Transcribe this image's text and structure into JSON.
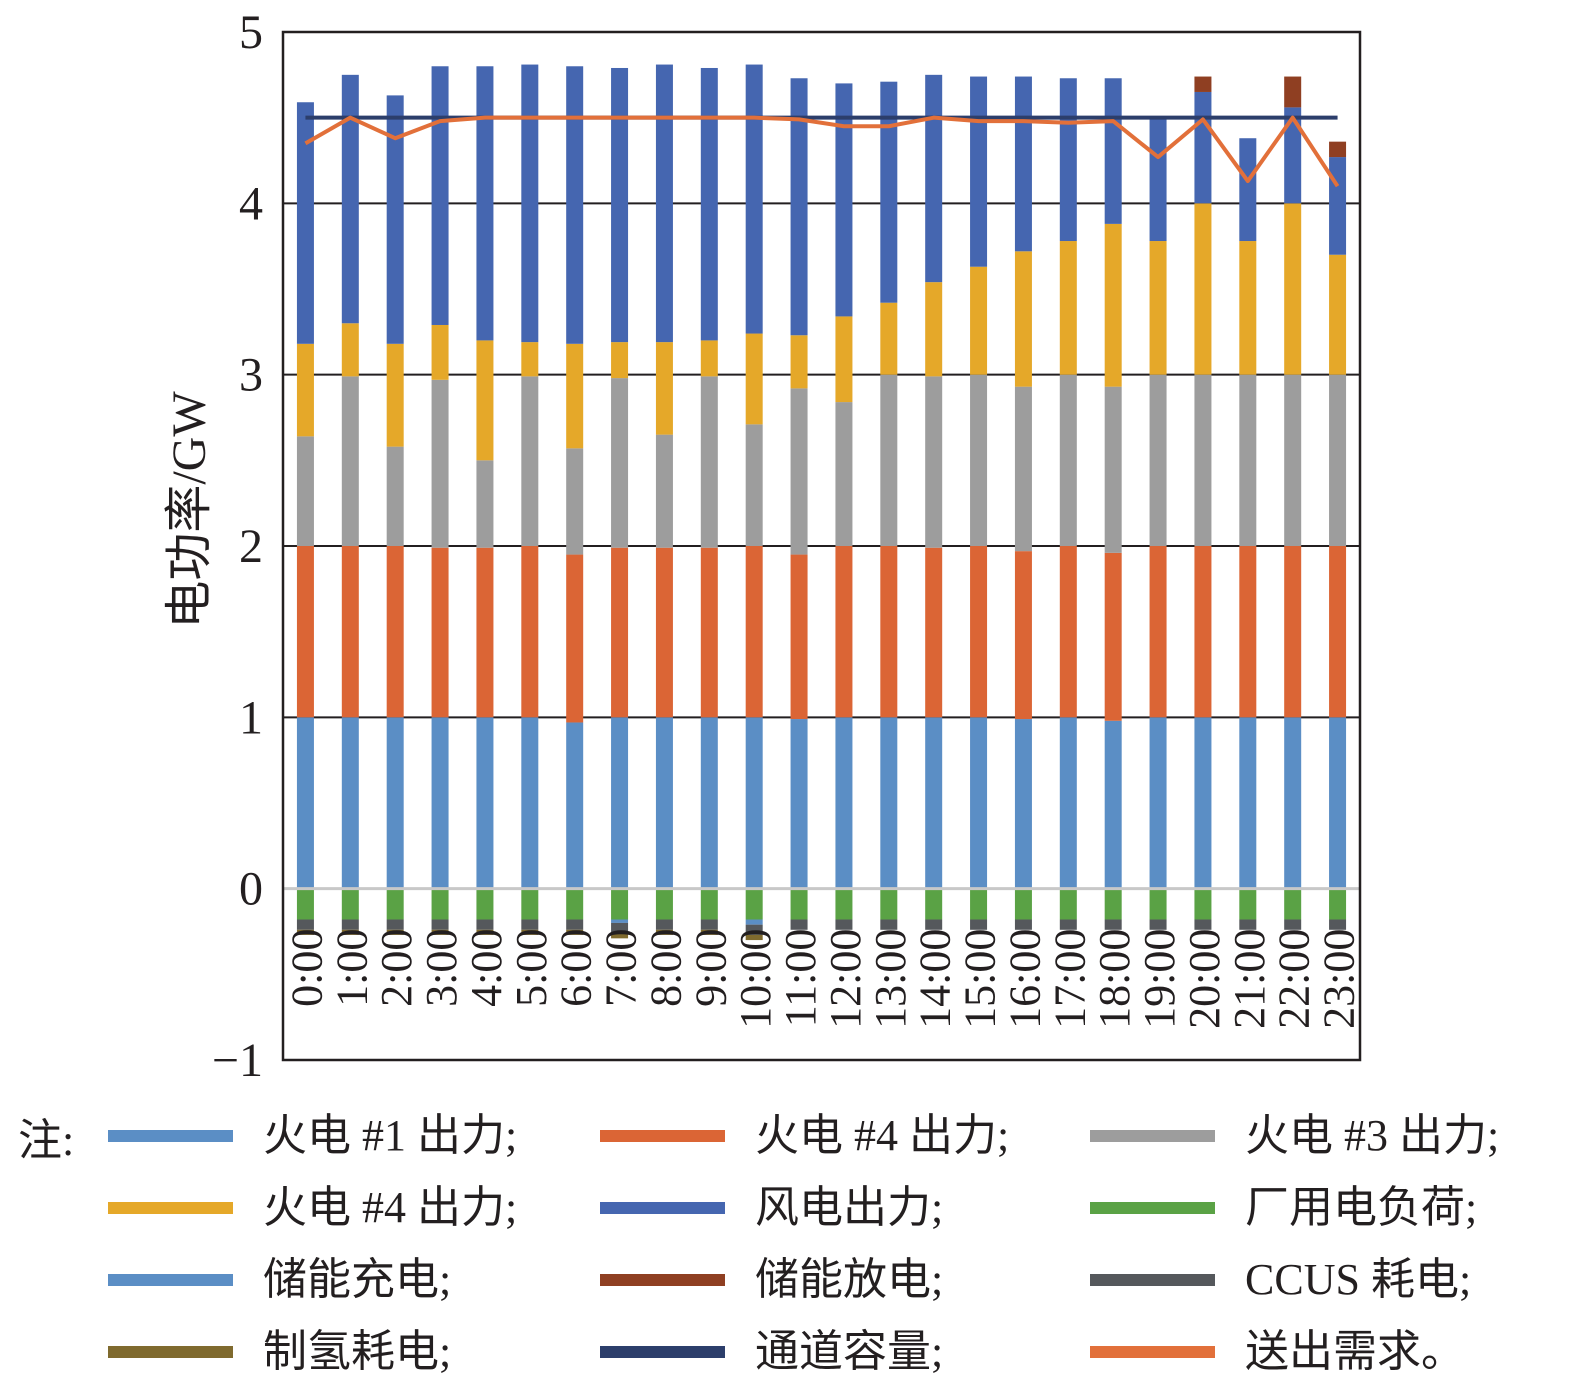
{
  "chart_data": {
    "type": "bar",
    "stacked": true,
    "ylabel": "电功率/GW",
    "ylim": [
      -1,
      5
    ],
    "yticks": [
      -1,
      0,
      1,
      2,
      3,
      4,
      5
    ],
    "ytick_labels": [
      "−1",
      "0",
      "1",
      "2",
      "3",
      "4",
      "5"
    ],
    "grid": "horizontal",
    "legend_position": "bottom",
    "categories": [
      "0:00",
      "1:00",
      "2:00",
      "3:00",
      "4:00",
      "5:00",
      "6:00",
      "7:00",
      "8:00",
      "9:00",
      "10:00",
      "11:00",
      "12:00",
      "13:00",
      "14:00",
      "15:00",
      "16:00",
      "17:00",
      "18:00",
      "19:00",
      "20:00",
      "21:00",
      "22:00",
      "23:00"
    ],
    "series": [
      {
        "name": "火电 #1 出力",
        "kind": "bar",
        "color": "#5b8ec5",
        "values": [
          1,
          1,
          1,
          1,
          1,
          1,
          0.97,
          1,
          1,
          1,
          1,
          0.99,
          1,
          1,
          1,
          1,
          0.99,
          1,
          0.98,
          1,
          1,
          1,
          1,
          1
        ]
      },
      {
        "name": "火电 #4 出力",
        "kind": "bar",
        "color": "#db6535",
        "values": [
          1,
          1,
          1,
          0.99,
          0.99,
          1,
          0.98,
          0.99,
          0.99,
          0.99,
          1,
          0.96,
          1,
          1,
          0.99,
          1,
          0.98,
          1,
          0.98,
          1,
          1,
          1,
          1,
          1
        ]
      },
      {
        "name": "火电 #3 出力",
        "kind": "bar",
        "color": "#9d9d9d",
        "values": [
          0.64,
          0.99,
          0.58,
          0.98,
          0.51,
          0.99,
          0.62,
          0.99,
          0.66,
          1,
          0.71,
          0.97,
          0.84,
          1,
          1,
          1,
          0.96,
          1,
          0.97,
          1,
          1,
          1,
          1,
          1
        ]
      },
      {
        "name": "火电 #4 出力",
        "kind": "bar",
        "color": "#e5a829",
        "values": [
          0.54,
          0.31,
          0.6,
          0.32,
          0.7,
          0.2,
          0.61,
          0.21,
          0.54,
          0.21,
          0.53,
          0.31,
          0.5,
          0.42,
          0.55,
          0.63,
          0.79,
          0.78,
          0.95,
          0.78,
          1,
          0.78,
          1,
          0.7
        ]
      },
      {
        "name": "风电出力",
        "kind": "bar",
        "color": "#4566b0",
        "values": [
          1.41,
          1.45,
          1.45,
          1.51,
          1.6,
          1.62,
          1.62,
          1.6,
          1.62,
          1.59,
          1.57,
          1.5,
          1.36,
          1.29,
          1.21,
          1.11,
          1.02,
          0.95,
          0.85,
          0.72,
          0.65,
          0.6,
          0.56,
          0.57
        ]
      },
      {
        "name": "厂用电负荷",
        "kind": "bar",
        "color": "#5aa245",
        "values": [
          -0.18,
          -0.18,
          -0.18,
          -0.18,
          -0.18,
          -0.18,
          -0.18,
          -0.18,
          -0.18,
          -0.18,
          -0.18,
          -0.18,
          -0.18,
          -0.18,
          -0.18,
          -0.18,
          -0.18,
          -0.18,
          -0.18,
          -0.18,
          -0.18,
          -0.18,
          -0.18,
          -0.18
        ]
      },
      {
        "name": "储能充电",
        "kind": "bar",
        "color": "#5b8ec5",
        "values": [
          0,
          0,
          0,
          0,
          0,
          0,
          0,
          -0.02,
          0,
          0,
          -0.03,
          0,
          0,
          0,
          0,
          0,
          0,
          0,
          0,
          0,
          0,
          0,
          0,
          0
        ]
      },
      {
        "name": "储能放电",
        "kind": "bar",
        "color": "#8f3f22",
        "values": [
          0,
          0,
          0,
          0,
          0,
          0,
          0,
          0,
          0,
          0,
          0,
          0,
          0,
          0,
          0,
          0,
          0,
          0,
          0,
          0,
          0.09,
          0,
          0.18,
          0.09
        ]
      },
      {
        "name": "CCUS 耗电",
        "kind": "bar",
        "color": "#55585c",
        "values": [
          -0.06,
          -0.06,
          -0.06,
          -0.06,
          -0.06,
          -0.06,
          -0.06,
          -0.06,
          -0.06,
          -0.06,
          -0.06,
          -0.06,
          -0.06,
          -0.06,
          -0.06,
          -0.06,
          -0.06,
          -0.06,
          -0.06,
          -0.06,
          -0.06,
          -0.06,
          -0.06,
          -0.06
        ]
      },
      {
        "name": "制氢耗电",
        "kind": "bar",
        "color": "#7f6a2e",
        "values": [
          -0.03,
          -0.03,
          -0.03,
          -0.03,
          -0.03,
          -0.03,
          -0.03,
          -0.03,
          -0.03,
          -0.03,
          -0.03,
          0,
          0,
          0,
          0,
          0,
          0,
          0,
          0,
          0,
          0,
          0,
          0,
          0
        ]
      },
      {
        "name": "通道容量",
        "kind": "line",
        "color": "#2c3e6b",
        "values": [
          4.5,
          4.5,
          4.5,
          4.5,
          4.5,
          4.5,
          4.5,
          4.5,
          4.5,
          4.5,
          4.5,
          4.5,
          4.5,
          4.5,
          4.5,
          4.5,
          4.5,
          4.5,
          4.5,
          4.5,
          4.5,
          4.5,
          4.5,
          4.5
        ]
      },
      {
        "name": "送出需求",
        "kind": "line",
        "color": "#e2703a",
        "values": [
          4.35,
          4.5,
          4.38,
          4.48,
          4.5,
          4.5,
          4.5,
          4.5,
          4.5,
          4.5,
          4.5,
          4.49,
          4.45,
          4.45,
          4.5,
          4.48,
          4.48,
          4.47,
          4.48,
          4.27,
          4.49,
          4.13,
          4.5,
          4.1
        ]
      }
    ]
  },
  "legend": {
    "note": "注:",
    "items": [
      {
        "label": "火电 #1 出力;",
        "color": "#5b8ec5"
      },
      {
        "label": "火电 #4 出力;",
        "color": "#db6535"
      },
      {
        "label": "火电 #3 出力;",
        "color": "#9d9d9d"
      },
      {
        "label": "火电 #4 出力;",
        "color": "#e5a829"
      },
      {
        "label": "风电出力;",
        "color": "#4566b0"
      },
      {
        "label": "厂用电负荷;",
        "color": "#5aa245"
      },
      {
        "label": "储能充电;",
        "color": "#5b8ec5"
      },
      {
        "label": "储能放电;",
        "color": "#8f3f22"
      },
      {
        "label": "CCUS 耗电;",
        "color": "#55585c"
      },
      {
        "label": "制氢耗电;",
        "color": "#7f6a2e"
      },
      {
        "label": "通道容量;",
        "color": "#2c3e6b"
      },
      {
        "label": "送出需求。",
        "color": "#e2703a"
      }
    ]
  }
}
